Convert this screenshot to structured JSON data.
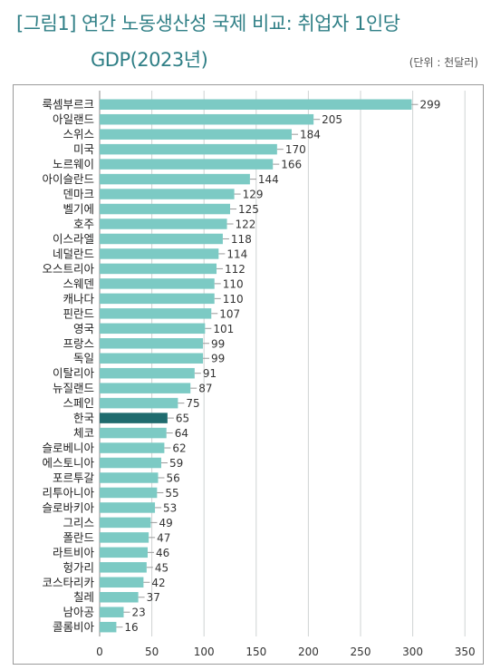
{
  "title": "[그림1] 연간 노동생산성 국제 비교: 취업자 1인당",
  "title_line2": "GDP(2023년)",
  "unit": "(단위 : 천달러)",
  "colors": {
    "bar": "#7ccac4",
    "highlight": "#1f6b6e",
    "grid": "#cfd3d3",
    "title": "#2f7f86"
  },
  "chart_data": {
    "type": "bar",
    "orientation": "horizontal",
    "title": "[그림1] 연간 노동생산성 국제 비교: 취업자 1인당 GDP(2023년)",
    "unit": "(단위 : 천달러)",
    "categories": [
      "룩셈부르크",
      "아일랜드",
      "스위스",
      "미국",
      "노르웨이",
      "아이슬란드",
      "덴마크",
      "벨기에",
      "호주",
      "이스라엘",
      "네덜란드",
      "오스트리아",
      "스웨덴",
      "캐나다",
      "핀란드",
      "영국",
      "프랑스",
      "독일",
      "이탈리아",
      "뉴질랜드",
      "스페인",
      "한국",
      "체코",
      "슬로베니아",
      "에스토니아",
      "포르투갈",
      "리투아니아",
      "슬로바키아",
      "그리스",
      "폴란드",
      "라트비아",
      "헝가리",
      "코스타리카",
      "칠레",
      "남아공",
      "콜롬비아"
    ],
    "values": [
      299,
      205,
      184,
      170,
      166,
      144,
      129,
      125,
      122,
      118,
      114,
      112,
      110,
      110,
      107,
      101,
      99,
      99,
      91,
      87,
      75,
      65,
      64,
      62,
      59,
      56,
      55,
      53,
      49,
      47,
      46,
      45,
      42,
      37,
      23,
      16
    ],
    "highlight": "한국",
    "xlim": [
      0,
      350
    ],
    "xticks": [
      0,
      50,
      100,
      150,
      200,
      250,
      300,
      350
    ],
    "grid": true
  }
}
